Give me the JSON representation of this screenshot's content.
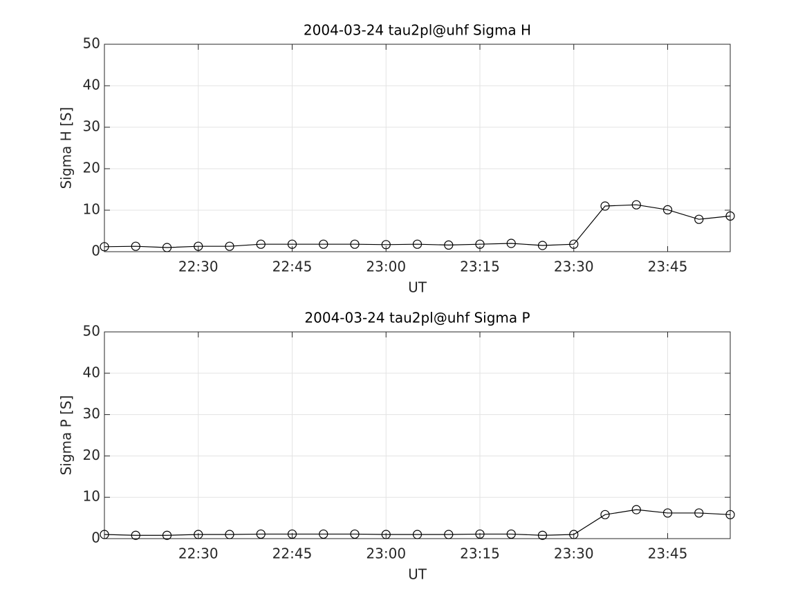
{
  "chart_data": [
    {
      "type": "line",
      "title": "2004-03-24  tau2pl@uhf Sigma H",
      "xlabel": "UT",
      "ylabel": "Sigma H [S]",
      "x": [
        "22:15",
        "22:20",
        "22:25",
        "22:30",
        "22:35",
        "22:40",
        "22:45",
        "22:50",
        "22:55",
        "23:00",
        "23:05",
        "23:10",
        "23:15",
        "23:20",
        "23:25",
        "23:30",
        "23:35",
        "23:40",
        "23:45",
        "23:50",
        "23:55"
      ],
      "values": [
        1.2,
        1.3,
        1.0,
        1.3,
        1.3,
        1.8,
        1.8,
        1.8,
        1.8,
        1.7,
        1.8,
        1.6,
        1.8,
        2.0,
        1.5,
        1.8,
        11.0,
        11.3,
        10.1,
        7.8,
        8.6
      ],
      "color": "#000000",
      "marker": "circle",
      "xlim": [
        "22:15",
        "23:55"
      ],
      "xticks": [
        "22:30",
        "22:45",
        "23:00",
        "23:15",
        "23:30",
        "23:45"
      ],
      "ylim": [
        0,
        50
      ],
      "yticks": [
        0,
        10,
        20,
        30,
        40,
        50
      ],
      "grid": true
    },
    {
      "type": "line",
      "title": "2004-03-24  tau2pl@uhf Sigma P",
      "xlabel": "UT",
      "ylabel": "Sigma P [S]",
      "x": [
        "22:15",
        "22:20",
        "22:25",
        "22:30",
        "22:35",
        "22:40",
        "22:45",
        "22:50",
        "22:55",
        "23:00",
        "23:05",
        "23:10",
        "23:15",
        "23:20",
        "23:25",
        "23:30",
        "23:35",
        "23:40",
        "23:45",
        "23:50",
        "23:55"
      ],
      "values": [
        1.0,
        0.8,
        0.8,
        1.0,
        1.0,
        1.1,
        1.1,
        1.1,
        1.1,
        1.0,
        1.0,
        1.0,
        1.1,
        1.1,
        0.8,
        1.0,
        5.8,
        7.0,
        6.2,
        6.2,
        5.8
      ],
      "color": "#000000",
      "marker": "circle",
      "xlim": [
        "22:15",
        "23:55"
      ],
      "xticks": [
        "22:30",
        "22:45",
        "23:00",
        "23:15",
        "23:30",
        "23:45"
      ],
      "ylim": [
        0,
        50
      ],
      "yticks": [
        0,
        10,
        20,
        30,
        40,
        50
      ],
      "grid": true
    }
  ]
}
